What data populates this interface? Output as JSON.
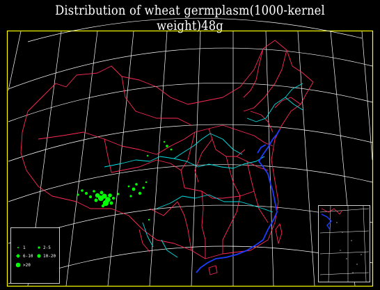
{
  "title": "Distribution of wheat germplasm(1000-kernel weight)48g",
  "colors": {
    "background": "#000000",
    "frame": "#ffff00",
    "graticule": "#ffffff",
    "provincial_border": "#ff2a55",
    "rivers": "#00e5e5",
    "coastline": "#1e3cff",
    "points": "#00ff00"
  },
  "legend": {
    "items": [
      {
        "symbol": "dot-small",
        "label": "1"
      },
      {
        "symbol": "dot-medium",
        "label": "2-5"
      },
      {
        "symbol": "diamond",
        "label": "6-10"
      },
      {
        "symbol": "dot-large",
        "label": "10-20"
      },
      {
        "symbol": "dot-xlarge",
        "label": ">20"
      }
    ]
  },
  "inset": {
    "name": "south-china-sea-inset"
  }
}
